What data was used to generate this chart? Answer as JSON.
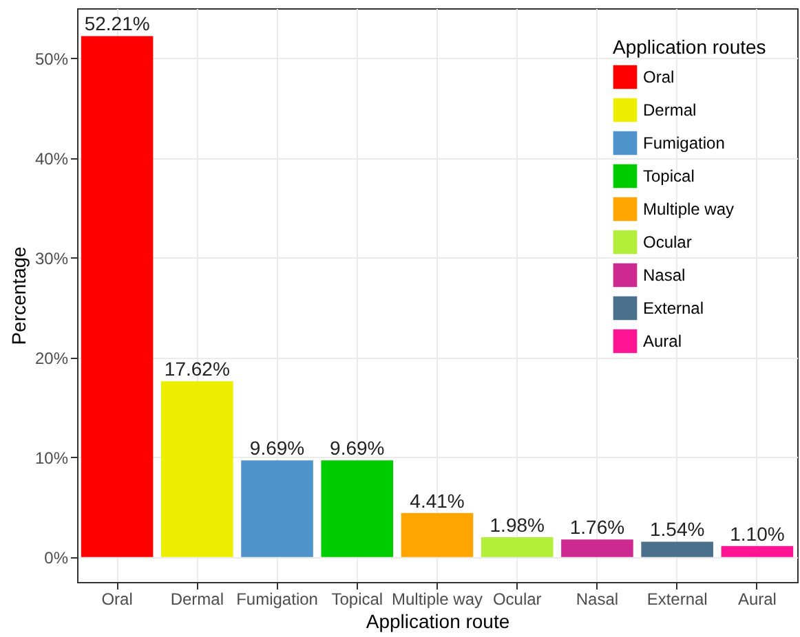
{
  "chart_data": {
    "type": "bar",
    "xlabel": "Application route",
    "ylabel": "Percentage",
    "legend_title": "Application routes",
    "categories": [
      "Oral",
      "Dermal",
      "Fumigation",
      "Topical",
      "Multiple way",
      "Ocular",
      "Nasal",
      "External",
      "Aural"
    ],
    "series": [
      {
        "name": "Oral",
        "color": "#ff0000",
        "values": [
          52.21,
          null,
          null,
          null,
          null,
          null,
          null,
          null,
          null
        ],
        "value_labels": [
          "52.21%",
          null,
          null,
          null,
          null,
          null,
          null,
          null,
          null
        ]
      },
      {
        "name": "Dermal",
        "color": "#eeee00",
        "values": [
          null,
          17.62,
          null,
          null,
          null,
          null,
          null,
          null,
          null
        ],
        "value_labels": [
          null,
          "17.62%",
          null,
          null,
          null,
          null,
          null,
          null,
          null
        ]
      },
      {
        "name": "Fumigation",
        "color": "#4f94cd",
        "values": [
          null,
          null,
          9.69,
          null,
          null,
          null,
          null,
          null,
          null
        ],
        "value_labels": [
          null,
          null,
          "9.69%",
          null,
          null,
          null,
          null,
          null,
          null
        ]
      },
      {
        "name": "Topical",
        "color": "#00cd00",
        "values": [
          null,
          null,
          null,
          9.69,
          null,
          null,
          null,
          null,
          null
        ],
        "value_labels": [
          null,
          null,
          null,
          "9.69%",
          null,
          null,
          null,
          null,
          null
        ]
      },
      {
        "name": "Multiple way",
        "color": "#ffa500",
        "values": [
          null,
          null,
          null,
          null,
          4.41,
          null,
          null,
          null,
          null
        ],
        "value_labels": [
          null,
          null,
          null,
          null,
          "4.41%",
          null,
          null,
          null,
          null
        ]
      },
      {
        "name": "Ocular",
        "color": "#b3ee3a",
        "values": [
          null,
          null,
          null,
          null,
          null,
          1.98,
          null,
          null,
          null
        ],
        "value_labels": [
          null,
          null,
          null,
          null,
          null,
          "1.98%",
          null,
          null,
          null
        ]
      },
      {
        "name": "Nasal",
        "color": "#cd2990",
        "values": [
          null,
          null,
          null,
          null,
          null,
          null,
          1.76,
          null,
          null
        ],
        "value_labels": [
          null,
          null,
          null,
          null,
          null,
          null,
          "1.76%",
          null,
          null
        ]
      },
      {
        "name": "External",
        "color": "#4a708b",
        "values": [
          null,
          null,
          null,
          null,
          null,
          null,
          null,
          1.54,
          null
        ],
        "value_labels": [
          null,
          null,
          null,
          null,
          null,
          null,
          null,
          "1.54%",
          null
        ]
      },
      {
        "name": "Aural",
        "color": "#ff1493",
        "values": [
          null,
          null,
          null,
          null,
          null,
          null,
          null,
          null,
          1.1
        ],
        "value_labels": [
          null,
          null,
          null,
          null,
          null,
          null,
          null,
          null,
          "1.10%"
        ]
      }
    ],
    "ylim": [
      -2.5,
      55
    ],
    "yticks": [
      {
        "value": 0,
        "label": "0%"
      },
      {
        "value": 10,
        "label": "10%"
      },
      {
        "value": 20,
        "label": "20%"
      },
      {
        "value": 30,
        "label": "30%"
      },
      {
        "value": 40,
        "label": "40%"
      },
      {
        "value": 50,
        "label": "50%"
      }
    ],
    "grid": true,
    "legend": "top right"
  }
}
